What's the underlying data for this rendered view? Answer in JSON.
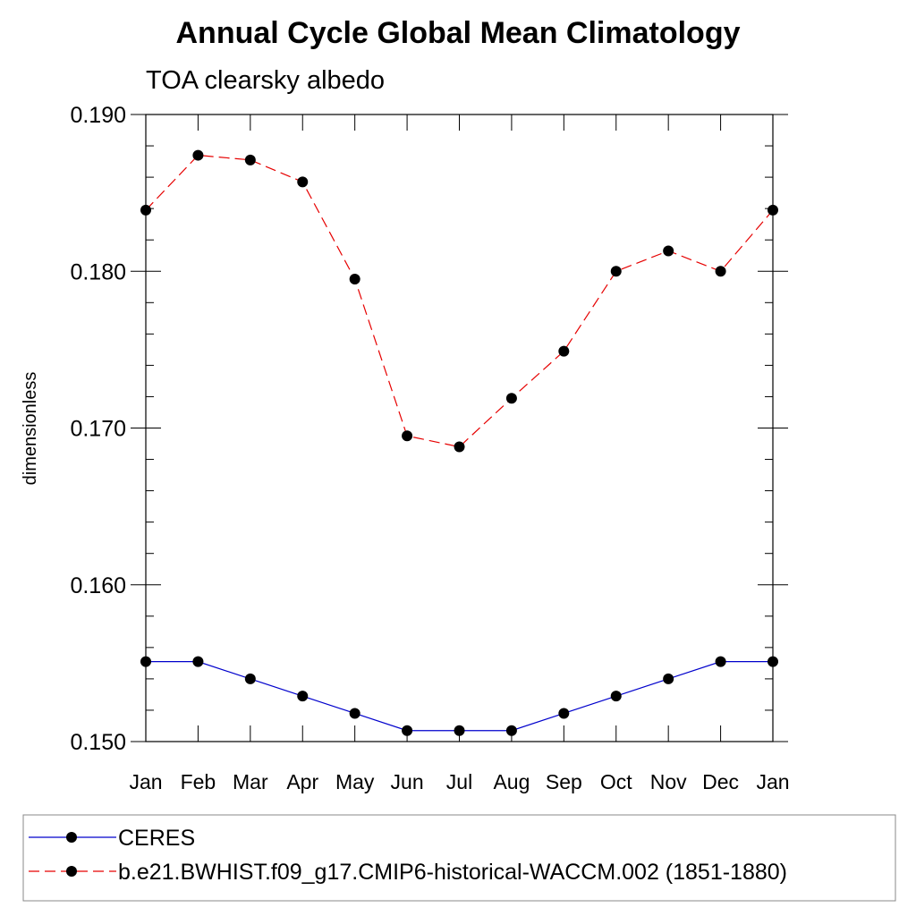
{
  "chart_data": {
    "type": "line",
    "title": "Annual Cycle Global Mean Climatology",
    "subtitle": "TOA clearsky albedo",
    "xlabel": "",
    "ylabel": "dimensionless",
    "categories": [
      "Jan",
      "Feb",
      "Mar",
      "Apr",
      "May",
      "Jun",
      "Jul",
      "Aug",
      "Sep",
      "Oct",
      "Nov",
      "Dec",
      "Jan"
    ],
    "ylim": [
      0.15,
      0.19
    ],
    "yticks": [
      "0.150",
      "0.160",
      "0.170",
      "0.180",
      "0.190"
    ],
    "grid": false,
    "legend_position": "bottom",
    "series": [
      {
        "name": "CERES",
        "color": "#0000cc",
        "line_style": "solid",
        "marker": "filled-circle",
        "values": [
          0.1551,
          0.1551,
          0.154,
          0.1529,
          0.1518,
          0.1507,
          0.1507,
          0.1507,
          0.1518,
          0.1529,
          0.154,
          0.1551,
          0.1551
        ]
      },
      {
        "name": "b.e21.BWHIST.f09_g17.CMIP6-historical-WACCM.002 (1851-1880)",
        "color": "#e60000",
        "line_style": "dashed",
        "marker": "filled-circle",
        "values": [
          0.1839,
          0.1874,
          0.1871,
          0.1857,
          0.1795,
          0.1695,
          0.1688,
          0.1719,
          0.1749,
          0.18,
          0.1813,
          0.18,
          0.1839
        ]
      }
    ]
  }
}
